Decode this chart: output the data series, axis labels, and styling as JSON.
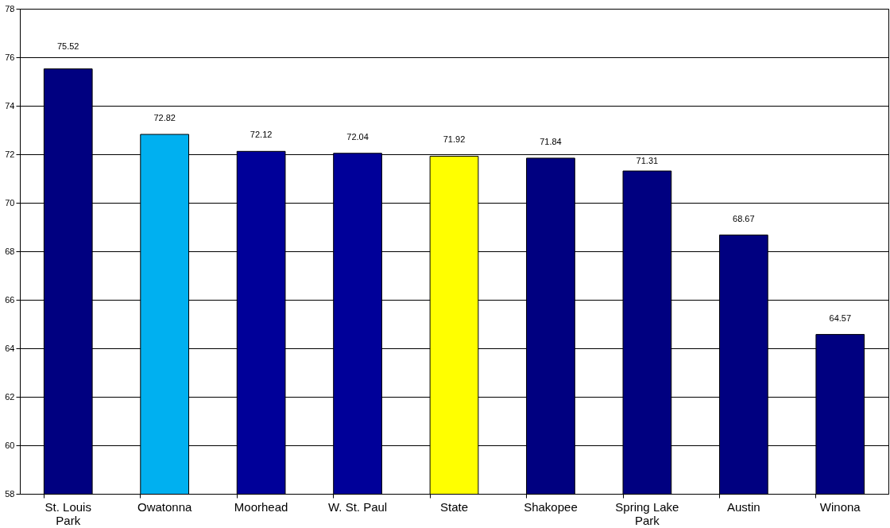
{
  "chart_data": {
    "type": "bar",
    "categories": [
      "St. Louis Park",
      "Owatonna",
      "Moorhead",
      "W. St. Paul",
      "State",
      "Shakopee",
      "Spring Lake Park",
      "Austin",
      "Winona"
    ],
    "values": [
      75.52,
      72.82,
      72.12,
      72.04,
      71.92,
      71.84,
      71.31,
      68.67,
      64.57
    ],
    "colors": [
      "#000080",
      "#00b0f0",
      "#000099",
      "#000099",
      "#ffff00",
      "#000080",
      "#000080",
      "#000080",
      "#000080"
    ],
    "ylim": [
      58,
      78
    ],
    "yticks": [
      58,
      60,
      62,
      64,
      66,
      68,
      70,
      72,
      74,
      76,
      78
    ],
    "grid": "y",
    "data_labels": true
  }
}
